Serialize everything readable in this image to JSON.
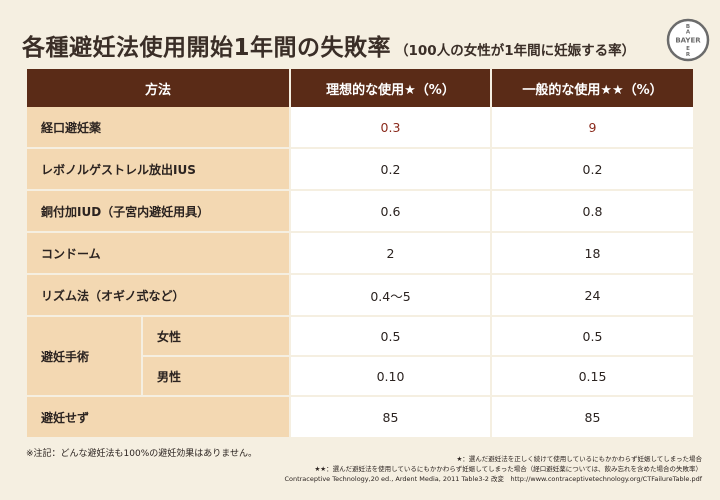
{
  "title": "各種避妊法使用開始1年間の失敗率",
  "subtitle": "（100人の女性が1年間に妊娠する率）",
  "logo": {
    "text_vertical": "BAYER",
    "text_horizontal": "BAYER"
  },
  "table": {
    "headers": [
      "方法",
      "理想的な使用★（%）",
      "一般的な使用★★（%）"
    ],
    "rows": [
      {
        "method": "経口避妊薬",
        "ideal": "0.3",
        "typical": "9"
      },
      {
        "method": "レボノルゲストレル放出IUS",
        "ideal": "0.2",
        "typical": "0.2"
      },
      {
        "method": "銅付加IUD（子宮内避妊用具）",
        "ideal": "0.6",
        "typical": "0.8"
      },
      {
        "method": "コンドーム",
        "ideal": "2",
        "typical": "18"
      },
      {
        "method": "リズム法（オギノ式など）",
        "ideal": "0.4〜5",
        "typical": "24"
      }
    ],
    "group": {
      "method": "避妊手術",
      "subrows": [
        {
          "sub": "女性",
          "ideal": "0.5",
          "typical": "0.5"
        },
        {
          "sub": "男性",
          "ideal": "0.10",
          "typical": "0.15"
        }
      ]
    },
    "last_row": {
      "method": "避妊せず",
      "ideal": "85",
      "typical": "85"
    }
  },
  "footnote_left": "※注記：どんな避妊法も100%の避妊効果はありません。",
  "notes": [
    "★：選んだ避妊法を正しく続けて使用しているにもかかわらず妊娠してしまった場合",
    "★★：選んだ避妊法を使用しているにもかかわらず妊娠してしまった場合（経口避妊薬については、飲み忘れを含めた場合の失敗率）",
    "Contraceptive Technology,20 ed., Ardent Media, 2011 Table3-2 改変　http://www.contraceptivetechnology.org/CTFailureTable.pdf"
  ]
}
